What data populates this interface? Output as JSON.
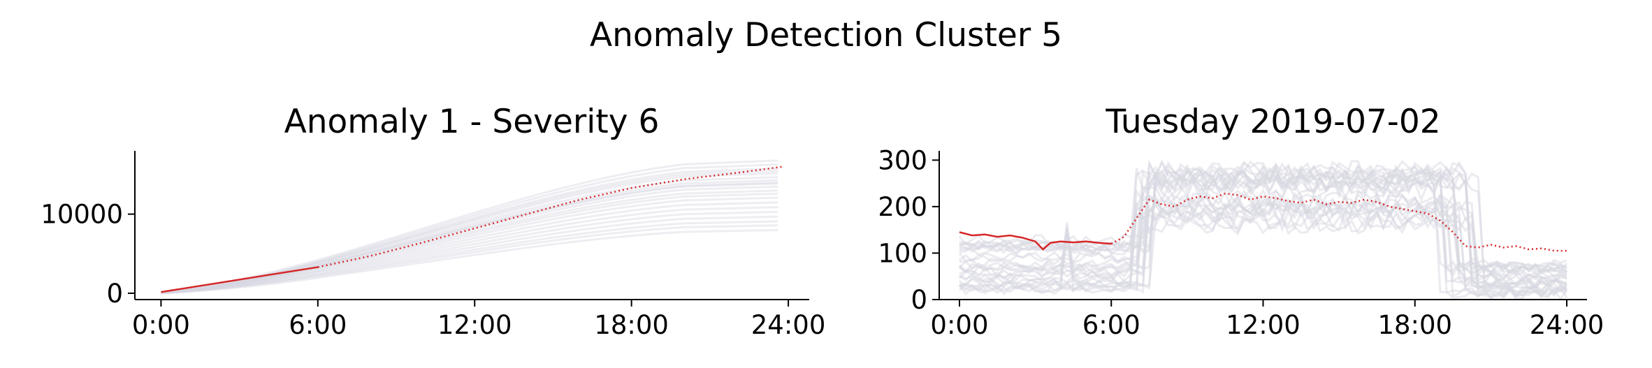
{
  "figure": {
    "suptitle": "Anomaly Detection Cluster 5"
  },
  "chart_data": [
    {
      "type": "line",
      "title": "Anomaly 1 - Severity 6",
      "xlabel": "",
      "ylabel": "",
      "xlim": [
        -1,
        24.8
      ],
      "ylim": [
        -800,
        18000
      ],
      "xticks": [
        0,
        6,
        12,
        18,
        24
      ],
      "xtick_labels": [
        "0:00",
        "6:00",
        "12:00",
        "18:00",
        "24:00"
      ],
      "yticks": [
        0,
        10000
      ],
      "ytick_labels": [
        "0",
        "10000"
      ],
      "grid": false,
      "legend": "none",
      "colors": {
        "highlight": "#d62728",
        "background": "#d8d8e2"
      },
      "highlight_observed": {
        "x": [
          0,
          6
        ],
        "y": [
          150,
          3300
        ]
      },
      "highlight_projected": {
        "x": [
          6,
          8,
          10,
          12,
          14,
          16,
          18,
          20,
          22,
          23.8
        ],
        "y": [
          3300,
          4700,
          6400,
          8200,
          10000,
          11800,
          13300,
          14400,
          15200,
          16000
        ]
      },
      "background_series_finals": [
        16800,
        16300,
        15800,
        15200,
        14700,
        14300,
        13900,
        13500,
        13000,
        12600,
        12100,
        11500,
        10900,
        10300,
        9700,
        9100,
        8600,
        8000,
        15500,
        14000
      ]
    },
    {
      "type": "line",
      "title": "Tuesday 2019-07-02",
      "xlabel": "",
      "ylabel": "",
      "xlim": [
        -0.8,
        24.8
      ],
      "ylim": [
        0,
        320
      ],
      "xticks": [
        0,
        6,
        12,
        18,
        24
      ],
      "xtick_labels": [
        "0:00",
        "6:00",
        "12:00",
        "18:00",
        "24:00"
      ],
      "yticks": [
        0,
        100,
        200,
        300
      ],
      "ytick_labels": [
        "0",
        "100",
        "200",
        "300"
      ],
      "grid": false,
      "legend": "none",
      "colors": {
        "highlight": "#d62728",
        "background": "#d8d8e2"
      },
      "highlight_observed": {
        "x": [
          0,
          0.5,
          1,
          1.5,
          2,
          2.5,
          3,
          3.3,
          3.6,
          4,
          4.5,
          5,
          5.5,
          6
        ],
        "y": [
          145,
          138,
          140,
          135,
          138,
          133,
          125,
          108,
          122,
          125,
          123,
          125,
          122,
          120
        ]
      },
      "highlight_projected": {
        "x": [
          6,
          6.5,
          7,
          7.5,
          8,
          8.5,
          9,
          9.5,
          10,
          10.5,
          11,
          11.5,
          12,
          12.5,
          13,
          13.5,
          14,
          14.5,
          15,
          15.5,
          16,
          16.5,
          17,
          17.5,
          18,
          18.5,
          19,
          19.5,
          20,
          20.5,
          21,
          21.5,
          22,
          22.5,
          23,
          23.5,
          24
        ],
        "y": [
          120,
          135,
          175,
          215,
          205,
          200,
          215,
          222,
          218,
          228,
          225,
          215,
          222,
          218,
          212,
          208,
          215,
          205,
          210,
          208,
          215,
          210,
          200,
          195,
          190,
          185,
          170,
          145,
          115,
          112,
          118,
          112,
          115,
          108,
          110,
          105,
          105
        ]
      }
    }
  ]
}
